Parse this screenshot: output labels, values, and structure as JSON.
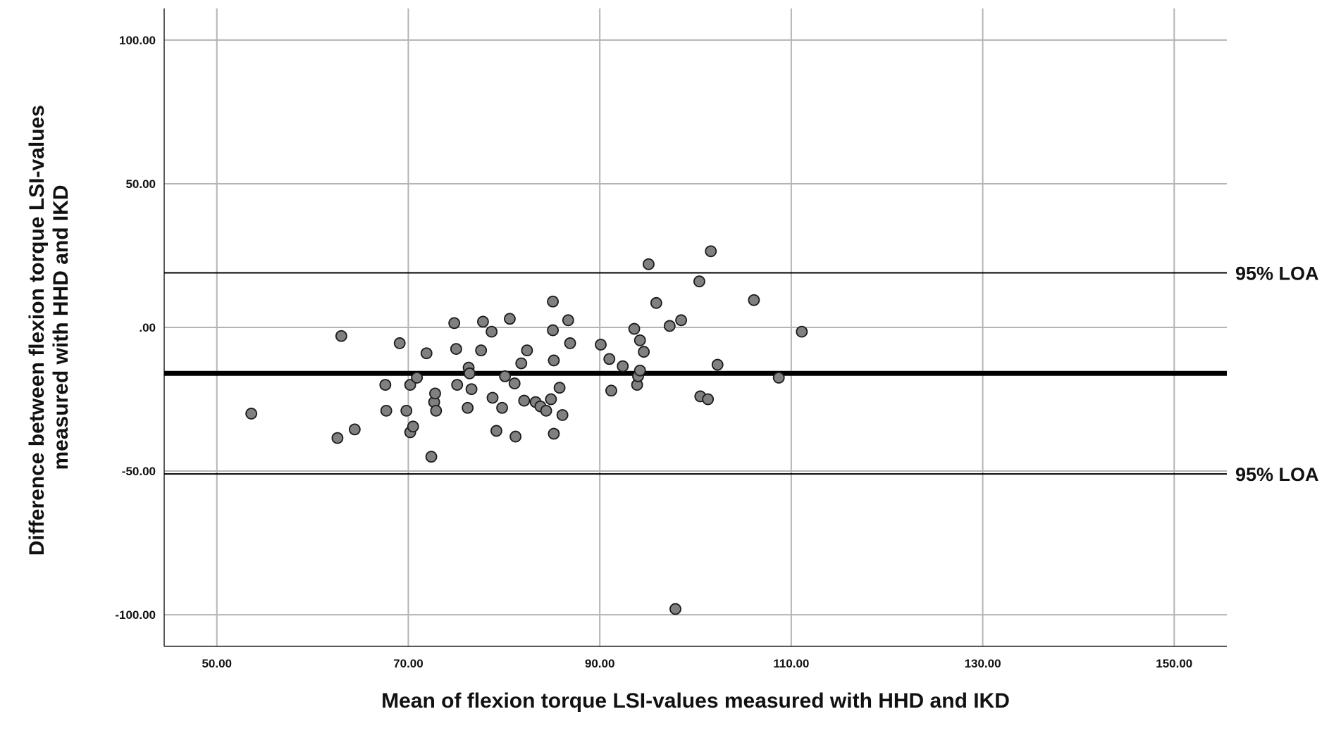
{
  "chart_data": {
    "type": "scatter",
    "title": "",
    "xlabel": "Mean of flexion torque LSI-values measured with HHD and IKD",
    "ylabel_lines": [
      "Difference between flexion torque LSI-values",
      "measured with HHD and IKD"
    ],
    "xlim": [
      44.5,
      155.5
    ],
    "ylim": [
      -111,
      111
    ],
    "x_ticks": [
      {
        "value": 50,
        "label": "50.00"
      },
      {
        "value": 70,
        "label": "70.00"
      },
      {
        "value": 90,
        "label": "90.00"
      },
      {
        "value": 110,
        "label": "110.00"
      },
      {
        "value": 130,
        "label": "130.00"
      },
      {
        "value": 150,
        "label": "150.00"
      }
    ],
    "y_ticks": [
      {
        "value": 100,
        "label": "100.00"
      },
      {
        "value": 50,
        "label": "50.00"
      },
      {
        "value": 0,
        "label": ".00"
      },
      {
        "value": -50,
        "label": "-50.00"
      },
      {
        "value": -100,
        "label": "-100.00"
      }
    ],
    "grid": true,
    "reference_lines": [
      {
        "value": 19,
        "label": "95% LOA",
        "weight": "thin"
      },
      {
        "value": -16,
        "label": "",
        "weight": "bold"
      },
      {
        "value": -51,
        "label": "95% LOA",
        "weight": "thin"
      }
    ],
    "marker_color": "#808080",
    "marker_edge_color": "#1a1a1a",
    "points": [
      [
        53.6,
        -30
      ],
      [
        62.6,
        -38.5
      ],
      [
        63.0,
        -3
      ],
      [
        64.4,
        -35.5
      ],
      [
        67.6,
        -20
      ],
      [
        67.7,
        -29
      ],
      [
        69.1,
        -5.5
      ],
      [
        69.8,
        -29
      ],
      [
        70.2,
        -20
      ],
      [
        70.2,
        -36.5
      ],
      [
        70.5,
        -34.5
      ],
      [
        70.9,
        -17.5
      ],
      [
        71.9,
        -9
      ],
      [
        72.4,
        -45
      ],
      [
        72.7,
        -26
      ],
      [
        72.8,
        -23
      ],
      [
        72.9,
        -29
      ],
      [
        74.8,
        1.5
      ],
      [
        75.0,
        -7.5
      ],
      [
        75.1,
        -20
      ],
      [
        76.2,
        -28
      ],
      [
        76.3,
        -14
      ],
      [
        76.4,
        -16
      ],
      [
        76.6,
        -21.5
      ],
      [
        77.6,
        -8
      ],
      [
        77.8,
        2
      ],
      [
        78.7,
        -1.5
      ],
      [
        78.8,
        -24.5
      ],
      [
        79.2,
        -36
      ],
      [
        79.8,
        -28
      ],
      [
        80.1,
        -17
      ],
      [
        80.6,
        3
      ],
      [
        81.1,
        -19.5
      ],
      [
        81.2,
        -38
      ],
      [
        81.8,
        -12.5
      ],
      [
        82.1,
        -25.5
      ],
      [
        82.4,
        -8
      ],
      [
        83.3,
        -26
      ],
      [
        83.8,
        -27.5
      ],
      [
        84.4,
        -29
      ],
      [
        84.9,
        -25
      ],
      [
        85.1,
        9
      ],
      [
        85.1,
        -1
      ],
      [
        85.2,
        -11.5
      ],
      [
        85.2,
        -37
      ],
      [
        85.8,
        -21
      ],
      [
        86.1,
        -30.5
      ],
      [
        86.7,
        2.5
      ],
      [
        86.9,
        -5.5
      ],
      [
        90.1,
        -6
      ],
      [
        91.0,
        -11
      ],
      [
        91.2,
        -22
      ],
      [
        92.4,
        -13.5
      ],
      [
        93.6,
        -0.5
      ],
      [
        93.9,
        -20
      ],
      [
        94.0,
        -17
      ],
      [
        94.2,
        -15
      ],
      [
        94.2,
        -4.5
      ],
      [
        94.6,
        -8.5
      ],
      [
        95.1,
        22
      ],
      [
        95.9,
        8.5
      ],
      [
        97.3,
        0.5
      ],
      [
        97.9,
        -98
      ],
      [
        98.5,
        2.5
      ],
      [
        100.4,
        16
      ],
      [
        100.5,
        -24
      ],
      [
        101.3,
        -25
      ],
      [
        101.6,
        26.5
      ],
      [
        102.3,
        -13
      ],
      [
        106.1,
        9.5
      ],
      [
        108.7,
        -17.5
      ],
      [
        111.1,
        -1.5
      ]
    ]
  }
}
